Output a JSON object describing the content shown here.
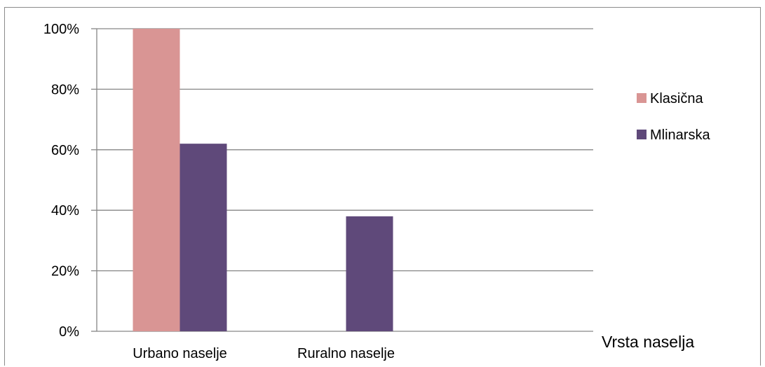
{
  "chart_data": {
    "type": "bar",
    "categories": [
      "Urbano naselje",
      "Ruralno naselje"
    ],
    "series": [
      {
        "name": "Klasična",
        "values": [
          100,
          0
        ],
        "color": "#d99594"
      },
      {
        "name": "Mlinarska",
        "values": [
          62,
          38
        ],
        "color": "#5f497a"
      }
    ],
    "xlabel": "Vrsta naselja",
    "ylabel": "",
    "title": "",
    "ylim": [
      0,
      100
    ],
    "yticks": [
      0,
      20,
      40,
      60,
      80,
      100
    ],
    "ytick_labels": [
      "0%",
      "20%",
      "40%",
      "60%",
      "80%",
      "100%"
    ],
    "grid": true,
    "legend_position": "right"
  }
}
